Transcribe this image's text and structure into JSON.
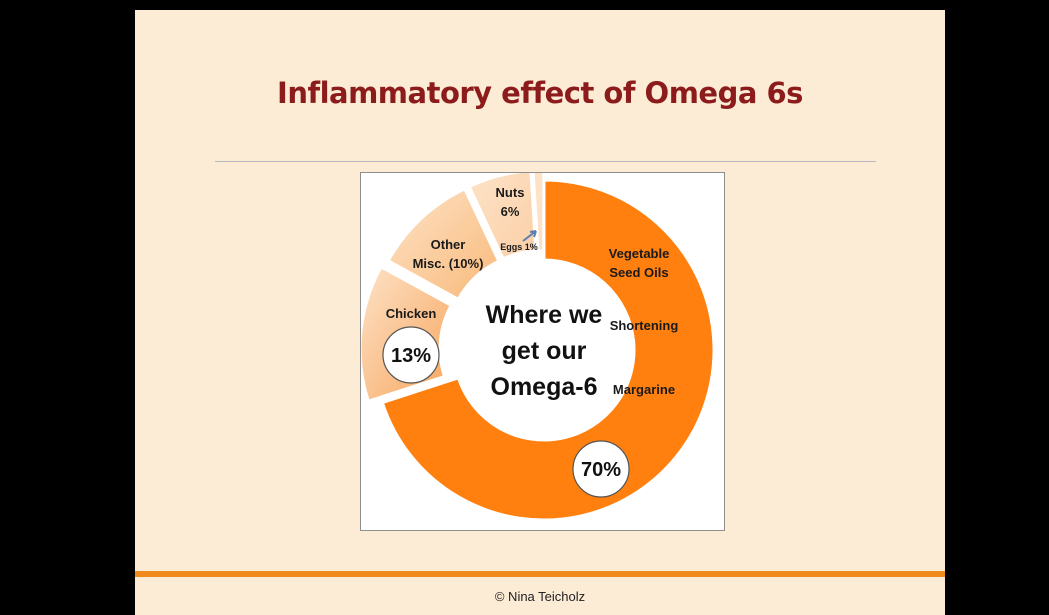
{
  "slide": {
    "title": "Inflammatory effect of Omega 6s",
    "footer": "© Nina Teicholz"
  },
  "chart_data": {
    "type": "pie",
    "center_text": [
      "Where we",
      "get our",
      "Omega-6"
    ],
    "slices": [
      {
        "label": [
          "Vegetable",
          "Seed Oils",
          "",
          "Shortening",
          "",
          "Margarine"
        ],
        "value": 70,
        "value_label": "70%",
        "color": "#ff7f0f"
      },
      {
        "label": [
          "Chicken"
        ],
        "value": 13,
        "value_label": "13%",
        "color": "#f7a55c"
      },
      {
        "label": [
          "Other",
          "Misc. (10%)"
        ],
        "value": 10,
        "value_label": "",
        "color": "#f9b979"
      },
      {
        "label": [
          "Nuts",
          "6%"
        ],
        "value": 6,
        "value_label": "",
        "color": "#fbcfa6"
      },
      {
        "label": [
          "Eggs 1%"
        ],
        "value": 1,
        "value_label": "",
        "color": "#fde0c4"
      }
    ]
  }
}
